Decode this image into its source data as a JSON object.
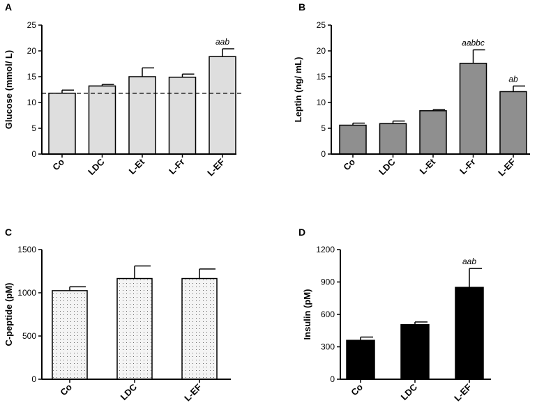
{
  "colors": {
    "gray_light": "#dedede",
    "gray_medium": "#8f8f8f",
    "black": "#000000",
    "dotted_fill": "#f2f2f2"
  },
  "chart_data": [
    {
      "panel": "A",
      "type": "bar",
      "ylabel": "Glucose  (mmol/ L)",
      "categories": [
        "Co",
        "LDC",
        "L-Et",
        "L-Fr",
        "L-EF"
      ],
      "values": [
        11.8,
        13.2,
        15.0,
        14.9,
        18.9
      ],
      "errors": [
        0.6,
        0.3,
        1.7,
        0.6,
        1.5
      ],
      "annotations": [
        "",
        "",
        "",
        "",
        "aab"
      ],
      "yticks": [
        0,
        5,
        10,
        15,
        20,
        25
      ],
      "ylim": [
        0,
        25
      ],
      "reference_line": 11.8,
      "fill": "light-gray"
    },
    {
      "panel": "B",
      "type": "bar",
      "ylabel": "Leptin (ng/ mL)",
      "categories": [
        "Co",
        "LDC",
        "L-Et",
        "L-Fr",
        "L-EF"
      ],
      "values": [
        5.6,
        5.9,
        8.4,
        17.6,
        12.1
      ],
      "errors": [
        0.4,
        0.5,
        0.2,
        2.6,
        1.1
      ],
      "annotations": [
        "",
        "",
        "",
        "aabbc",
        "ab"
      ],
      "yticks": [
        0,
        5,
        10,
        15,
        20,
        25
      ],
      "ylim": [
        0,
        25
      ],
      "fill": "medium-gray"
    },
    {
      "panel": "C",
      "type": "bar",
      "ylabel": "C-peptide (pM)",
      "categories": [
        "Co",
        "LDC",
        "L-EF"
      ],
      "values": [
        1025,
        1165,
        1165
      ],
      "errors": [
        45,
        145,
        110
      ],
      "annotations": [
        "",
        "",
        ""
      ],
      "yticks": [
        0,
        500,
        1000,
        1500
      ],
      "ylim": [
        0,
        1500
      ],
      "fill": "dotted"
    },
    {
      "panel": "D",
      "type": "bar",
      "ylabel": "Insulin (pM)",
      "categories": [
        "Co",
        "LDC",
        "L-EF"
      ],
      "values": [
        360,
        505,
        850
      ],
      "errors": [
        30,
        25,
        175
      ],
      "annotations": [
        "",
        "",
        "aab"
      ],
      "yticks": [
        0,
        300,
        600,
        900,
        1200
      ],
      "ylim": [
        0,
        1200
      ],
      "fill": "black"
    }
  ]
}
